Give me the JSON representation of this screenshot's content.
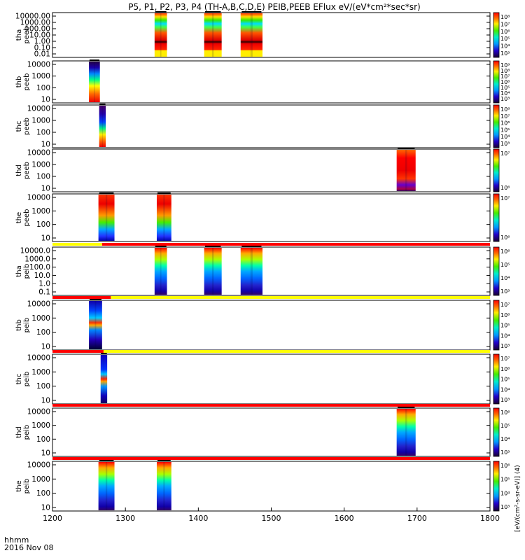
{
  "title": "P5, P1, P2, P3, P4 (TH-A,B,C,D,E) PEIB,PEEB EFlux eV/(eV*cm²*sec*sr)",
  "time_label_1": "hhmm",
  "time_label_2": "2016 Nov 08",
  "colorbar_unit": "[eV/(cm²-s-sr-eV)] (4)",
  "colors": {
    "frame": "#000000",
    "flag_red": "#ff0000",
    "flag_yellow": "#ffff00"
  },
  "chart_data": {
    "type": "heatmap",
    "title": "P5, P1, P2, P3, P4 (TH-A,B,C,D,E) PEIB,PEEB EFlux eV/(eV*cm²*sec*sr)",
    "xlabel": "",
    "x_ticks": [
      1200,
      1300,
      1400,
      1500,
      1600,
      1700,
      1800
    ],
    "xlim": [
      1200,
      1800
    ],
    "panels": [
      {
        "ylabel": [
          "tha",
          "peeb"
        ],
        "yticks": [
          "10000.00",
          "1000.00",
          "100.00",
          "10.00",
          "1.00",
          "0.10",
          "0.01"
        ],
        "ylog": true,
        "cb_ticks": [
          "10⁸",
          "10⁷",
          "10⁶",
          "10⁵",
          "10⁴",
          "10³"
        ],
        "bursts": [
          [
            1340,
            1357
          ],
          [
            1408,
            1432
          ],
          [
            1458,
            1488
          ]
        ],
        "style": "tha_peeb",
        "flag": null
      },
      {
        "ylabel": [
          "thb",
          "peeb"
        ],
        "yticks": [
          "10000",
          "1000",
          "100",
          "10"
        ],
        "ylog": true,
        "cb_ticks": [
          "10⁹",
          "10⁸",
          "10⁷",
          "10⁶",
          "10⁵",
          "10⁴",
          "10³"
        ],
        "bursts": [
          [
            1250,
            1265
          ]
        ],
        "style": "peeb_low",
        "flag": null
      },
      {
        "ylabel": [
          "thc",
          "peeb"
        ],
        "yticks": [
          "10000",
          "1000",
          "100",
          "10"
        ],
        "ylog": true,
        "cb_ticks": [
          "10⁸",
          "10⁷",
          "10⁶",
          "10⁵",
          "10⁴",
          "10³"
        ],
        "bursts": [
          [
            1264,
            1273
          ]
        ],
        "style": "peeb_dark",
        "flag": null
      },
      {
        "ylabel": [
          "thd",
          "peeb"
        ],
        "yticks": [
          "10000",
          "1000",
          "100",
          "10"
        ],
        "ylog": true,
        "cb_ticks": [
          "10⁷",
          "10⁶"
        ],
        "bursts": [
          [
            1672,
            1698
          ]
        ],
        "style": "peeb_thd",
        "flag": null
      },
      {
        "ylabel": [
          "the",
          "peeb"
        ],
        "yticks": [
          "10000",
          "1000",
          "100",
          "10"
        ],
        "ylog": true,
        "cb_ticks": [
          "10⁷",
          "10⁶"
        ],
        "bursts": [
          [
            1263,
            1285
          ],
          [
            1343,
            1363
          ]
        ],
        "style": "peeb_the",
        "flag": null
      },
      {
        "ylabel": [
          "tha",
          "peib"
        ],
        "yticks": [
          "10000.0",
          "1000.0",
          "100.0",
          "10.0",
          "1.0",
          "0.1"
        ],
        "ylog": true,
        "cb_ticks": [
          "10⁶",
          "10⁵",
          "10⁴",
          "10³"
        ],
        "bursts": [
          [
            1340,
            1357
          ],
          [
            1408,
            1432
          ],
          [
            1458,
            1488
          ]
        ],
        "style": "peib",
        "flag": {
          "yellow_until": 1268
        }
      },
      {
        "ylabel": [
          "thb",
          "peib"
        ],
        "yticks": [
          "10000",
          "1000",
          "100",
          "10"
        ],
        "ylog": true,
        "cb_ticks": [
          "10⁷",
          "10⁶",
          "10⁵",
          "10⁴",
          "10³"
        ],
        "bursts": [
          [
            1250,
            1268
          ]
        ],
        "style": "peib_thb",
        "flag": {
          "red_until": 1280
        }
      },
      {
        "ylabel": [
          "thc",
          "peib"
        ],
        "yticks": [
          "10000",
          "1000",
          "100",
          "10"
        ],
        "ylog": true,
        "cb_ticks": [
          "10⁷",
          "10⁶",
          "10⁵",
          "10⁴",
          "10³"
        ],
        "bursts": [
          [
            1266,
            1275
          ]
        ],
        "style": "peib_thc",
        "flag": {
          "red_until": 1270
        }
      },
      {
        "ylabel": [
          "thd",
          "peib"
        ],
        "yticks": [
          "10000",
          "1000",
          "100",
          "10"
        ],
        "ylog": true,
        "cb_ticks": [
          "10⁶",
          "10⁵",
          "10⁴",
          "10³"
        ],
        "bursts": [
          [
            1672,
            1698
          ]
        ],
        "style": "peib",
        "flag": {
          "red_until": 1800
        }
      },
      {
        "ylabel": [
          "the",
          "peib"
        ],
        "yticks": [
          "10000",
          "1000",
          "100",
          "10"
        ],
        "ylog": true,
        "cb_ticks": [
          "10⁶",
          "10⁵",
          "10⁴",
          "10³"
        ],
        "bursts": [
          [
            1263,
            1285
          ],
          [
            1343,
            1363
          ]
        ],
        "style": "peib",
        "flag": {
          "red_until": 1800
        }
      }
    ]
  }
}
